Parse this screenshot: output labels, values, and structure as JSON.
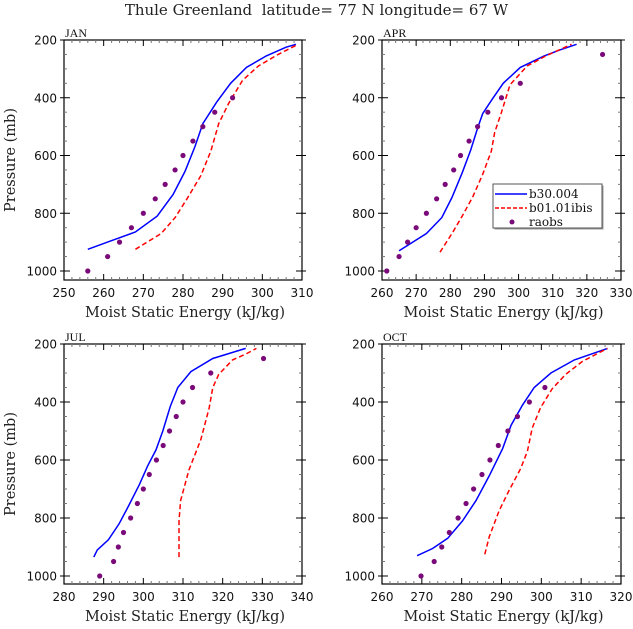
{
  "chart_data": {
    "type": "line",
    "title": "Thule Greenland  latitude= 77 N longitude= 67 W",
    "legend": {
      "placement": "inside APR panel, lower-right",
      "entries": [
        {
          "name": "b30.004",
          "style": "solid",
          "color": "#0000ff"
        },
        {
          "name": "b01.01ibis",
          "style": "dashed",
          "color": "#ff0000"
        },
        {
          "name": "raobs",
          "style": "marker",
          "color": "#7a0a7a"
        }
      ]
    },
    "panels": [
      {
        "label": "JAN",
        "xlabel": "Moist Static Energy (kJ/kg)",
        "ylabel": "Pressure (mb)",
        "xlim": [
          250,
          310
        ],
        "xticks": [
          250,
          260,
          270,
          280,
          290,
          300,
          310
        ],
        "ylim": [
          1030,
          200
        ],
        "yticks": [
          200,
          400,
          600,
          800,
          1000
        ],
        "show_xlabel": true,
        "show_ylabel": true,
        "show_yticklabels": true,
        "series": [
          {
            "name": "b30.004",
            "points": [
              [
                256,
                925
              ],
              [
                261,
                900
              ],
              [
                268,
                865
              ],
              [
                273.5,
                810
              ],
              [
                277.5,
                735
              ],
              [
                280.5,
                655
              ],
              [
                283,
                570
              ],
              [
                285,
                490
              ],
              [
                288.5,
                415
              ],
              [
                292,
                350
              ],
              [
                296,
                295
              ],
              [
                301,
                255
              ],
              [
                306,
                225
              ],
              [
                308.5,
                215
              ]
            ]
          },
          {
            "name": "b01.01ibis",
            "points": [
              [
                268,
                925
              ],
              [
                274.5,
                870
              ],
              [
                278,
                815
              ],
              [
                281,
                750
              ],
              [
                284.5,
                670
              ],
              [
                287,
                585
              ],
              [
                289,
                490
              ],
              [
                291.5,
                420
              ],
              [
                295,
                340
              ],
              [
                299,
                290
              ],
              [
                304,
                250
              ],
              [
                309,
                215
              ]
            ]
          },
          {
            "name": "raobs",
            "points": [
              [
                256,
                1000
              ],
              [
                261,
                950
              ],
              [
                264,
                900
              ],
              [
                267,
                850
              ],
              [
                270,
                800
              ],
              [
                273,
                750
              ],
              [
                275.5,
                700
              ],
              [
                278,
                650
              ],
              [
                280,
                600
              ],
              [
                282.5,
                550
              ],
              [
                285,
                500
              ],
              [
                288,
                450
              ],
              [
                292.5,
                400
              ]
            ]
          }
        ]
      },
      {
        "label": "APR",
        "xlabel": "Moist Static Energy (kJ/kg)",
        "ylabel": "",
        "xlim": [
          260,
          330
        ],
        "xticks": [
          260,
          270,
          280,
          290,
          300,
          310,
          320,
          330
        ],
        "ylim": [
          1030,
          200
        ],
        "yticks": [
          200,
          400,
          600,
          800,
          1000
        ],
        "show_xlabel": true,
        "show_ylabel": false,
        "show_yticklabels": true,
        "series": [
          {
            "name": "b30.004",
            "points": [
              [
                265,
                930
              ],
              [
                273,
                870
              ],
              [
                277.5,
                815
              ],
              [
                280.5,
                745
              ],
              [
                283.5,
                660
              ],
              [
                286,
                580
              ],
              [
                288,
                505
              ],
              [
                289.5,
                455
              ],
              [
                292,
                410
              ],
              [
                295.5,
                350
              ],
              [
                300.5,
                295
              ],
              [
                307.5,
                255
              ],
              [
                312,
                235
              ],
              [
                317,
                215
              ]
            ]
          },
          {
            "name": "b01.01ibis",
            "points": [
              [
                277,
                935
              ],
              [
                280.5,
                870
              ],
              [
                283.5,
                810
              ],
              [
                286.5,
                745
              ],
              [
                289.5,
                665
              ],
              [
                292,
                585
              ],
              [
                293,
                520
              ],
              [
                295,
                450
              ],
              [
                297.5,
                355
              ],
              [
                302.5,
                290
              ],
              [
                308,
                255
              ],
              [
                315.5,
                215
              ]
            ]
          },
          {
            "name": "raobs",
            "points": [
              [
                261.4,
                1000
              ],
              [
                265,
                950
              ],
              [
                267.5,
                900
              ],
              [
                270,
                850
              ],
              [
                273,
                800
              ],
              [
                276,
                750
              ],
              [
                278.5,
                700
              ],
              [
                281,
                650
              ],
              [
                283,
                600
              ],
              [
                285.5,
                550
              ],
              [
                288,
                500
              ],
              [
                291,
                450
              ],
              [
                295,
                400
              ],
              [
                300.5,
                350
              ],
              [
                324.6,
                250
              ]
            ]
          }
        ]
      },
      {
        "label": "JUL",
        "xlabel": "Moist Static Energy (kJ/kg)",
        "ylabel": "Pressure (mb)",
        "xlim": [
          280,
          340
        ],
        "xticks": [
          280,
          290,
          300,
          310,
          320,
          330,
          340
        ],
        "ylim": [
          1030,
          200
        ],
        "yticks": [
          200,
          400,
          600,
          800,
          1000
        ],
        "show_xlabel": true,
        "show_ylabel": true,
        "show_yticklabels": true,
        "series": [
          {
            "name": "b30.004",
            "points": [
              [
                287.5,
                935
              ],
              [
                288.4,
                910
              ],
              [
                291.2,
                875
              ],
              [
                293.9,
                820
              ],
              [
                296.4,
                755
              ],
              [
                299,
                685
              ],
              [
                301.1,
                620
              ],
              [
                303.2,
                565
              ],
              [
                304.9,
                500
              ],
              [
                306.8,
                415
              ],
              [
                308.7,
                350
              ],
              [
                312,
                295
              ],
              [
                317.5,
                250
              ],
              [
                325.8,
                215
              ]
            ]
          },
          {
            "name": "b01.01ibis",
            "points": [
              [
                309,
                935
              ],
              [
                309,
                810
              ],
              [
                309.4,
                740
              ],
              [
                311.5,
                635
              ],
              [
                314.5,
                530
              ],
              [
                316.6,
                420
              ],
              [
                317.5,
                350
              ],
              [
                319,
                305
              ],
              [
                322.5,
                255
              ],
              [
                325.8,
                235
              ],
              [
                328.5,
                215
              ]
            ]
          },
          {
            "name": "raobs",
            "points": [
              [
                289,
                1000
              ],
              [
                292.5,
                950
              ],
              [
                293.7,
                900
              ],
              [
                295,
                850
              ],
              [
                296.8,
                800
              ],
              [
                298.5,
                750
              ],
              [
                300,
                700
              ],
              [
                301.5,
                650
              ],
              [
                303.3,
                600
              ],
              [
                305,
                550
              ],
              [
                306.6,
                500
              ],
              [
                308.3,
                450
              ],
              [
                310,
                400
              ],
              [
                312.4,
                350
              ],
              [
                317,
                300
              ],
              [
                330.3,
                250
              ]
            ]
          }
        ]
      },
      {
        "label": "OCT",
        "xlabel": "Moist Static Energy (kJ/kg)",
        "ylabel": "",
        "xlim": [
          260,
          320
        ],
        "xticks": [
          260,
          270,
          280,
          290,
          300,
          310,
          320
        ],
        "ylim": [
          1030,
          200
        ],
        "yticks": [
          200,
          400,
          600,
          800,
          1000
        ],
        "show_xlabel": true,
        "show_ylabel": false,
        "show_yticklabels": true,
        "series": [
          {
            "name": "b30.004",
            "points": [
              [
                268.8,
                930
              ],
              [
                272.7,
                905
              ],
              [
                276.5,
                870
              ],
              [
                280.2,
                810
              ],
              [
                283.6,
                740
              ],
              [
                286.9,
                655
              ],
              [
                290.3,
                560
              ],
              [
                292.4,
                480
              ],
              [
                295.3,
                410
              ],
              [
                298.2,
                350
              ],
              [
                302.4,
                300
              ],
              [
                308.3,
                255
              ],
              [
                316.6,
                215
              ]
            ]
          },
          {
            "name": "b01.01ibis",
            "points": [
              [
                285.8,
                925
              ],
              [
                286.9,
                865
              ],
              [
                289.4,
                775
              ],
              [
                291.9,
                705
              ],
              [
                294.8,
                630
              ],
              [
                296.5,
                570
              ],
              [
                297.7,
                490
              ],
              [
                299.8,
                420
              ],
              [
                302.7,
                355
              ],
              [
                306.1,
                305
              ],
              [
                310.3,
                260
              ],
              [
                316.6,
                215
              ]
            ]
          },
          {
            "name": "raobs",
            "points": [
              [
                269.8,
                1000
              ],
              [
                273.1,
                950
              ],
              [
                275,
                900
              ],
              [
                276.9,
                850
              ],
              [
                279.1,
                800
              ],
              [
                281.1,
                750
              ],
              [
                283,
                700
              ],
              [
                285.1,
                650
              ],
              [
                287.1,
                600
              ],
              [
                289.2,
                550
              ],
              [
                291.6,
                500
              ],
              [
                294,
                450
              ],
              [
                297,
                400
              ],
              [
                300.9,
                350
              ]
            ]
          }
        ]
      }
    ]
  }
}
